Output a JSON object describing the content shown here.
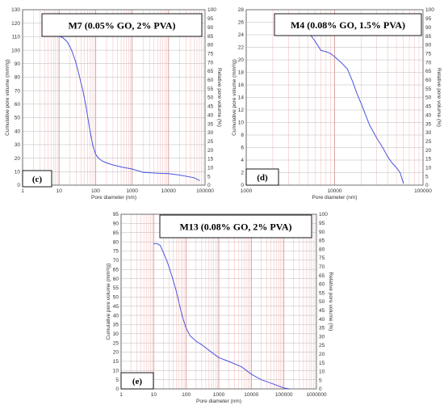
{
  "chart_data": [
    {
      "type": "line",
      "title": "M7 (0.05% GO, 2% PVA)",
      "panel_label": "(c)",
      "xlabel": "Pore diameter (nm)",
      "ylabel": "Cumulative pore volume (mm³/g)",
      "y2label": "Relative pore volume (%)",
      "xscale": "log",
      "xlim": [
        1,
        100000
      ],
      "ylim": [
        0,
        130
      ],
      "y2lim": [
        0,
        100
      ],
      "xticks": [
        "1",
        "10",
        "100",
        "1000",
        "10000",
        "100000"
      ],
      "yticks": [
        "0",
        "10",
        "20",
        "30",
        "40",
        "50",
        "60",
        "70",
        "80",
        "90",
        "100",
        "110",
        "120",
        "130"
      ],
      "y2ticks": [
        "0",
        "5",
        "10",
        "15",
        "20",
        "25",
        "30",
        "35",
        "40",
        "45",
        "50",
        "55",
        "60",
        "65",
        "70",
        "75",
        "80",
        "85",
        "90",
        "95",
        "100"
      ],
      "grid": true,
      "series": [
        {
          "color": "#4a55e0",
          "x": [
            8,
            10,
            13,
            17,
            22,
            28,
            35,
            45,
            55,
            65,
            75,
            85,
            100,
            120,
            150,
            200,
            300,
            500,
            1000,
            2000,
            5000,
            10000,
            20000,
            50000,
            70000
          ],
          "y": [
            111,
            110.5,
            109,
            106,
            100,
            92,
            82,
            70,
            58,
            46,
            36,
            29,
            23,
            20,
            18,
            16.5,
            15,
            13.5,
            12,
            9.5,
            8.8,
            8.5,
            7.5,
            5.5,
            3.5
          ]
        }
      ]
    },
    {
      "type": "line",
      "title": "M4 (0.08% GO, 1.5% PVA)",
      "panel_label": "(d)",
      "xlabel": "Pore diameter (nm)",
      "ylabel": "Cumulative pore volume (mm³/g)",
      "y2label": "Relative pore volume (%)",
      "xscale": "log",
      "xlim": [
        1000,
        100000
      ],
      "ylim": [
        0,
        28
      ],
      "y2lim": [
        0,
        100
      ],
      "xticks": [
        "1000",
        "10000",
        "100000"
      ],
      "yticks": [
        "0",
        "2",
        "4",
        "6",
        "8",
        "10",
        "12",
        "14",
        "16",
        "18",
        "20",
        "22",
        "24",
        "26",
        "28"
      ],
      "y2ticks": [
        "0",
        "5",
        "10",
        "15",
        "20",
        "25",
        "30",
        "35",
        "40",
        "45",
        "50",
        "55",
        "60",
        "65",
        "70",
        "75",
        "80",
        "85",
        "90",
        "95",
        "100"
      ],
      "grid": true,
      "series": [
        {
          "color": "#4a55e0",
          "x": [
            3000,
            4000,
            5000,
            6000,
            7000,
            8000,
            9000,
            10000,
            12000,
            14000,
            16000,
            18000,
            20000,
            22000,
            25000,
            30000,
            35000,
            40000,
            45000,
            50000,
            55000,
            60000
          ],
          "y": [
            25.8,
            25.5,
            24.5,
            23,
            21.5,
            21.3,
            21,
            20.5,
            19.5,
            18.5,
            16.5,
            14.5,
            13,
            11.5,
            9.5,
            7.5,
            6,
            4.5,
            3.5,
            2.8,
            2,
            0.3
          ]
        }
      ]
    },
    {
      "type": "line",
      "title": "M13 (0.08% GO, 2% PVA)",
      "panel_label": "(e)",
      "xlabel": "Pore diameter (nm)",
      "ylabel": "Cumulative pore volume (mm³/g)",
      "y2label": "Relative pore volume (%)",
      "xscale": "log",
      "xlim": [
        1,
        1000000
      ],
      "ylim": [
        0,
        95
      ],
      "y2lim": [
        0,
        100
      ],
      "xticks": [
        "1",
        "10",
        "100",
        "1000",
        "10000",
        "100000",
        "1000000"
      ],
      "yticks": [
        "0",
        "5",
        "10",
        "15",
        "20",
        "25",
        "30",
        "35",
        "40",
        "45",
        "50",
        "55",
        "60",
        "65",
        "70",
        "75",
        "80",
        "85",
        "90",
        "95"
      ],
      "y2ticks": [
        "0",
        "5",
        "10",
        "15",
        "20",
        "25",
        "30",
        "35",
        "40",
        "45",
        "50",
        "55",
        "60",
        "65",
        "70",
        "75",
        "80",
        "85",
        "90",
        "95",
        "100"
      ],
      "grid": true,
      "series": [
        {
          "color": "#4a55e0",
          "x": [
            10,
            13,
            16,
            20,
            25,
            30,
            40,
            50,
            60,
            70,
            80,
            100,
            130,
            200,
            300,
            500,
            1000,
            2000,
            5000,
            10000,
            20000,
            50000,
            100000,
            150000
          ],
          "y": [
            79,
            79,
            78,
            74,
            70,
            66,
            59,
            53,
            47,
            42,
            38,
            33,
            29,
            26,
            24,
            21,
            17,
            15,
            12,
            8,
            5,
            2.5,
            0.5,
            0
          ]
        }
      ]
    }
  ]
}
